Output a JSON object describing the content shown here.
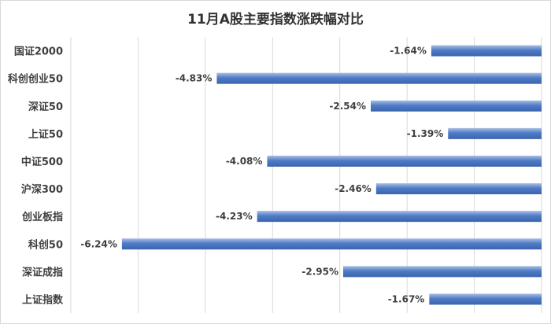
{
  "chart_data": {
    "type": "bar",
    "orientation": "horizontal",
    "title": "11月A股主要指数涨跌幅对比",
    "xlabel": "",
    "ylabel": "",
    "categories": [
      "国证2000",
      "科创创业50",
      "深证50",
      "上证50",
      "中证500",
      "沪深300",
      "创业板指",
      "科创50",
      "深证成指",
      "上证指数"
    ],
    "values": [
      -1.64,
      -4.83,
      -2.54,
      -1.39,
      -4.08,
      -2.46,
      -4.23,
      -6.24,
      -2.95,
      -1.67
    ],
    "value_labels": [
      "-1.64%",
      "-4.83%",
      "-2.54%",
      "-1.39%",
      "-4.08%",
      "-2.46%",
      "-4.23%",
      "-6.24%",
      "-2.95%",
      "-1.67%"
    ],
    "xlim": [
      -7,
      0
    ],
    "grid": true,
    "legend": "none",
    "colors": {
      "bar": "#4472c4",
      "bar_light": "#a9bfe3",
      "grid": "#d9d9d9",
      "text": "#404040"
    }
  }
}
